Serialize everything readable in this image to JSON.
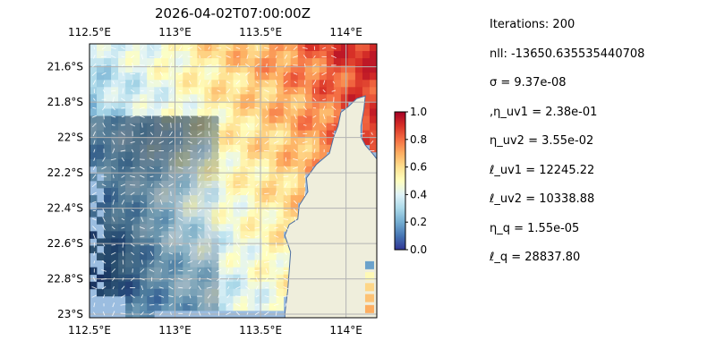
{
  "chart_data": {
    "type": "heatmap",
    "title": "2026-04-02T07:00:00Z",
    "x_ticks": [
      {
        "value": 112.5,
        "label": "112.5°E"
      },
      {
        "value": 113.0,
        "label": "113°E"
      },
      {
        "value": 113.5,
        "label": "113.5°E"
      },
      {
        "value": 114.0,
        "label": "114°E"
      }
    ],
    "y_ticks": [
      {
        "value": -21.6,
        "label": "21.6°S"
      },
      {
        "value": -21.8,
        "label": "21.8°S"
      },
      {
        "value": -22.0,
        "label": "22°S"
      },
      {
        "value": -22.2,
        "label": "22.2°S"
      },
      {
        "value": -22.4,
        "label": "22.4°S"
      },
      {
        "value": -22.6,
        "label": "22.6°S"
      },
      {
        "value": -22.8,
        "label": "22.8°S"
      },
      {
        "value": -23.0,
        "label": "23°S"
      }
    ],
    "xlim": [
      112.5,
      114.18
    ],
    "ylim": [
      -23.02,
      -21.47
    ],
    "grid": true,
    "colorbar": {
      "range": [
        0.0,
        1.0
      ],
      "ticks": [
        {
          "value": 0.0,
          "label": "0.0"
        },
        {
          "value": 0.2,
          "label": "0.2"
        },
        {
          "value": 0.4,
          "label": "0.4"
        },
        {
          "value": 0.6,
          "label": "0.6"
        },
        {
          "value": 0.8,
          "label": "0.8"
        },
        {
          "value": 1.0,
          "label": "1.0"
        }
      ],
      "colormap": [
        "#313695",
        "#4575b4",
        "#74add1",
        "#abd9e9",
        "#e0f3f8",
        "#ffffbf",
        "#fee090",
        "#fdae61",
        "#f46d43",
        "#d73027",
        "#a50026"
      ]
    },
    "colors": {
      "ocean": "#9bbde0",
      "land": "#efeedc",
      "coast": "#4d6fa3",
      "grid": "#b3b3b3",
      "arrows": "#ffffff"
    }
  },
  "stats": [
    {
      "text": "Iterations: 200"
    },
    {
      "text": "nll: -13650.635535440708"
    },
    {
      "text": "σ = 9.37e-08"
    },
    {
      "text": ",η_uv1 = 2.38e-01"
    },
    {
      "text": "η_uv2 = 3.55e-02"
    },
    {
      "text": "ℓ_uv1 = 12245.22"
    },
    {
      "text": "ℓ_uv2 = 10338.88"
    },
    {
      "text": "η_q = 1.55e-05"
    },
    {
      "text": "ℓ_q = 28837.80"
    }
  ]
}
